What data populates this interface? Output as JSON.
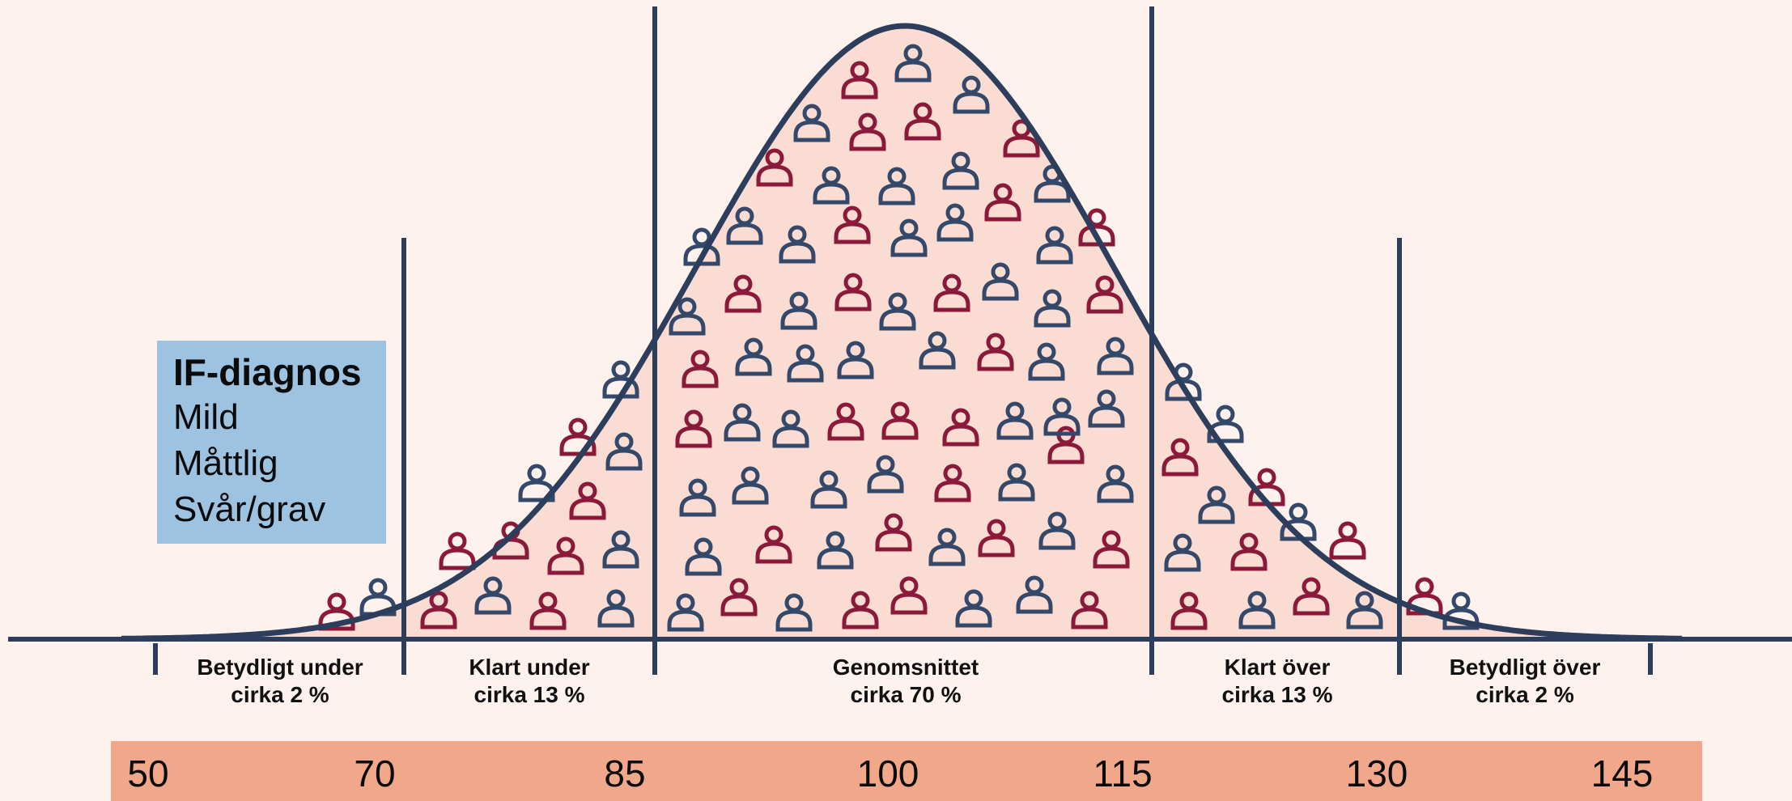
{
  "legend": {
    "title": "IF-diagnos",
    "items": [
      "Mild",
      "Måttlig",
      "Svår/grav"
    ]
  },
  "categories": [
    {
      "line1": "Betydligt under",
      "line2": "cirka 2 %"
    },
    {
      "line1": "Klart under",
      "line2": "cirka 13 %"
    },
    {
      "line1": "Genomsnittet",
      "line2": "cirka 70 %"
    },
    {
      "line1": "Klart över",
      "line2": "cirka 13 %"
    },
    {
      "line1": "Betydligt över",
      "line2": "cirka 2 %"
    }
  ],
  "scale": [
    "50",
    "70",
    "85",
    "100",
    "115",
    "130",
    "145"
  ],
  "colors": {
    "background": "#fdf2ee",
    "curve_fill": "#fbdcd3",
    "curve_stroke": "#2c3e5c",
    "person_red": "#8b1a3a",
    "person_blue": "#34486a",
    "legend_bg": "#9dc3e1",
    "scale_bar": "#f1a789"
  },
  "icons": [
    "person-icon"
  ]
}
